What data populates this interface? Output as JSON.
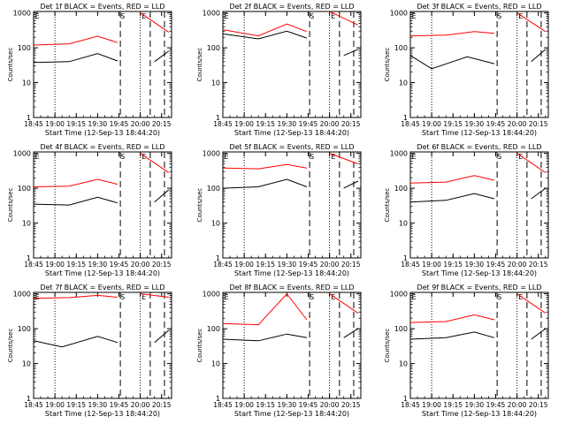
{
  "figure": {
    "ylabel": "Counts/sec",
    "xlabel": "Start Time (12-Sep-13 18:44:20)",
    "x_ticks": [
      "18:45",
      "19:00",
      "19:15",
      "19:30",
      "19:45",
      "20:00",
      "20:15"
    ],
    "y_ticks": [
      "1",
      "10",
      "100",
      "1000"
    ],
    "markers": [
      "E",
      "S",
      "E"
    ],
    "colors": {
      "events": "#000000",
      "lld": "#ff0000",
      "axes": "#000000"
    }
  },
  "chart_data": [
    {
      "type": "line",
      "title": "Det 1f BLACK = Events, RED = LLD",
      "ylim": [
        1,
        1100
      ],
      "yscale": "log",
      "xlim": [
        "18:45",
        "20:22"
      ],
      "gaps": [
        [
          "19:46",
          "19:59"
        ]
      ],
      "series": [
        {
          "name": "Events",
          "color": "#000000",
          "points": [
            [
              "18:45",
              38
            ],
            [
              "19:10",
              40
            ],
            [
              "19:30",
              68
            ],
            [
              "19:44",
              42
            ],
            [
              "20:10",
              40
            ],
            [
              "20:20",
              80
            ]
          ]
        },
        {
          "name": "LLD",
          "color": "#ff0000",
          "points": [
            [
              "18:45",
              120
            ],
            [
              "19:10",
              130
            ],
            [
              "19:30",
              215
            ],
            [
              "19:44",
              140
            ],
            [
              "20:00",
              1000
            ],
            [
              "20:20",
              280
            ]
          ]
        }
      ]
    },
    {
      "type": "line",
      "title": "Det 2f BLACK = Events, RED = LLD",
      "ylim": [
        1,
        1100
      ],
      "yscale": "log",
      "xlim": [
        "18:45",
        "20:22"
      ],
      "gaps": [
        [
          "19:46",
          "19:59"
        ]
      ],
      "series": [
        {
          "name": "Events",
          "color": "#000000",
          "points": [
            [
              "18:45",
              250
            ],
            [
              "19:10",
              180
            ],
            [
              "19:30",
              300
            ],
            [
              "19:44",
              190
            ],
            [
              "20:10",
              60
            ],
            [
              "20:20",
              90
            ]
          ]
        },
        {
          "name": "LLD",
          "color": "#ff0000",
          "points": [
            [
              "18:45",
              330
            ],
            [
              "19:10",
              220
            ],
            [
              "19:30",
              480
            ],
            [
              "19:44",
              290
            ],
            [
              "20:00",
              1300
            ],
            [
              "20:20",
              450
            ]
          ]
        }
      ]
    },
    {
      "type": "line",
      "title": "Det 3f BLACK = Events, RED = LLD",
      "ylim": [
        1,
        1100
      ],
      "yscale": "log",
      "xlim": [
        "18:45",
        "20:22"
      ],
      "gaps": [
        [
          "19:46",
          "19:59"
        ]
      ],
      "series": [
        {
          "name": "Events",
          "color": "#000000",
          "points": [
            [
              "18:45",
              60
            ],
            [
              "19:00",
              25
            ],
            [
              "19:25",
              55
            ],
            [
              "19:44",
              35
            ],
            [
              "20:10",
              40
            ],
            [
              "20:20",
              90
            ]
          ]
        },
        {
          "name": "LLD",
          "color": "#ff0000",
          "points": [
            [
              "18:45",
              220
            ],
            [
              "19:10",
              230
            ],
            [
              "19:30",
              290
            ],
            [
              "19:44",
              260
            ],
            [
              "20:00",
              1000
            ],
            [
              "20:20",
              290
            ]
          ]
        }
      ]
    },
    {
      "type": "line",
      "title": "Det 4f BLACK = Events, RED = LLD",
      "ylim": [
        1,
        1100
      ],
      "yscale": "log",
      "xlim": [
        "18:45",
        "20:22"
      ],
      "gaps": [
        [
          "19:46",
          "19:59"
        ]
      ],
      "series": [
        {
          "name": "Events",
          "color": "#000000",
          "points": [
            [
              "18:45",
              35
            ],
            [
              "19:10",
              33
            ],
            [
              "19:30",
              55
            ],
            [
              "19:44",
              38
            ],
            [
              "20:10",
              40
            ],
            [
              "20:20",
              90
            ]
          ]
        },
        {
          "name": "LLD",
          "color": "#ff0000",
          "points": [
            [
              "18:45",
              110
            ],
            [
              "19:10",
              115
            ],
            [
              "19:30",
              180
            ],
            [
              "19:44",
              130
            ],
            [
              "20:00",
              1000
            ],
            [
              "20:20",
              280
            ]
          ]
        }
      ]
    },
    {
      "type": "line",
      "title": "Det 5f BLACK = Events, RED = LLD",
      "ylim": [
        1,
        1100
      ],
      "yscale": "log",
      "xlim": [
        "18:45",
        "20:22"
      ],
      "gaps": [
        [
          "19:46",
          "19:59"
        ]
      ],
      "series": [
        {
          "name": "Events",
          "color": "#000000",
          "points": [
            [
              "18:45",
              100
            ],
            [
              "19:10",
              110
            ],
            [
              "19:30",
              180
            ],
            [
              "19:44",
              110
            ],
            [
              "20:10",
              100
            ],
            [
              "20:20",
              160
            ]
          ]
        },
        {
          "name": "LLD",
          "color": "#ff0000",
          "points": [
            [
              "18:45",
              380
            ],
            [
              "19:10",
              360
            ],
            [
              "19:30",
              480
            ],
            [
              "19:44",
              380
            ],
            [
              "20:00",
              1000
            ],
            [
              "20:20",
              500
            ]
          ]
        }
      ]
    },
    {
      "type": "line",
      "title": "Det 6f BLACK = Events, RED = LLD",
      "ylim": [
        1,
        1100
      ],
      "yscale": "log",
      "xlim": [
        "18:45",
        "20:22"
      ],
      "gaps": [
        [
          "19:46",
          "19:59"
        ]
      ],
      "series": [
        {
          "name": "Events",
          "color": "#000000",
          "points": [
            [
              "18:45",
              40
            ],
            [
              "19:10",
              45
            ],
            [
              "19:30",
              70
            ],
            [
              "19:44",
              50
            ],
            [
              "20:10",
              50
            ],
            [
              "20:20",
              100
            ]
          ]
        },
        {
          "name": "LLD",
          "color": "#ff0000",
          "points": [
            [
              "18:45",
              140
            ],
            [
              "19:10",
              150
            ],
            [
              "19:30",
              230
            ],
            [
              "19:44",
              170
            ],
            [
              "20:00",
              1000
            ],
            [
              "20:20",
              280
            ]
          ]
        }
      ]
    },
    {
      "type": "line",
      "title": "Det 7f BLACK = Events, RED = LLD",
      "ylim": [
        1,
        1100
      ],
      "yscale": "log",
      "xlim": [
        "18:45",
        "20:22"
      ],
      "gaps": [
        [
          "19:46",
          "19:59"
        ]
      ],
      "series": [
        {
          "name": "Events",
          "color": "#000000",
          "points": [
            [
              "18:45",
              45
            ],
            [
              "19:05",
              30
            ],
            [
              "19:30",
              60
            ],
            [
              "19:44",
              40
            ],
            [
              "20:10",
              40
            ],
            [
              "20:20",
              90
            ]
          ]
        },
        {
          "name": "LLD",
          "color": "#ff0000",
          "points": [
            [
              "18:45",
              750
            ],
            [
              "19:10",
              780
            ],
            [
              "19:30",
              900
            ],
            [
              "19:44",
              800
            ],
            [
              "20:00",
              1000
            ],
            [
              "20:20",
              800
            ]
          ]
        }
      ]
    },
    {
      "type": "line",
      "title": "Det 8f BLACK = Events, RED = LLD",
      "ylim": [
        1,
        1100
      ],
      "yscale": "log",
      "xlim": [
        "18:45",
        "20:22"
      ],
      "gaps": [
        [
          "19:46",
          "19:59"
        ]
      ],
      "series": [
        {
          "name": "Events",
          "color": "#000000",
          "points": [
            [
              "18:45",
              50
            ],
            [
              "19:10",
              45
            ],
            [
              "19:30",
              70
            ],
            [
              "19:44",
              55
            ],
            [
              "20:10",
              55
            ],
            [
              "20:20",
              100
            ]
          ]
        },
        {
          "name": "LLD",
          "color": "#ff0000",
          "points": [
            [
              "18:45",
              140
            ],
            [
              "19:10",
              130
            ],
            [
              "19:30",
              1000
            ],
            [
              "19:44",
              180
            ],
            [
              "20:00",
              1000
            ],
            [
              "20:20",
              280
            ]
          ]
        }
      ]
    },
    {
      "type": "line",
      "title": "Det 9f BLACK = Events, RED = LLD",
      "ylim": [
        1,
        1100
      ],
      "yscale": "log",
      "xlim": [
        "18:45",
        "20:22"
      ],
      "gaps": [
        [
          "19:46",
          "19:59"
        ]
      ],
      "series": [
        {
          "name": "Events",
          "color": "#000000",
          "points": [
            [
              "18:45",
              50
            ],
            [
              "19:10",
              55
            ],
            [
              "19:30",
              80
            ],
            [
              "19:44",
              55
            ],
            [
              "20:10",
              50
            ],
            [
              "20:20",
              100
            ]
          ]
        },
        {
          "name": "LLD",
          "color": "#ff0000",
          "points": [
            [
              "18:45",
              150
            ],
            [
              "19:10",
              160
            ],
            [
              "19:30",
              250
            ],
            [
              "19:44",
              180
            ],
            [
              "20:00",
              1000
            ],
            [
              "20:20",
              280
            ]
          ]
        }
      ]
    }
  ]
}
